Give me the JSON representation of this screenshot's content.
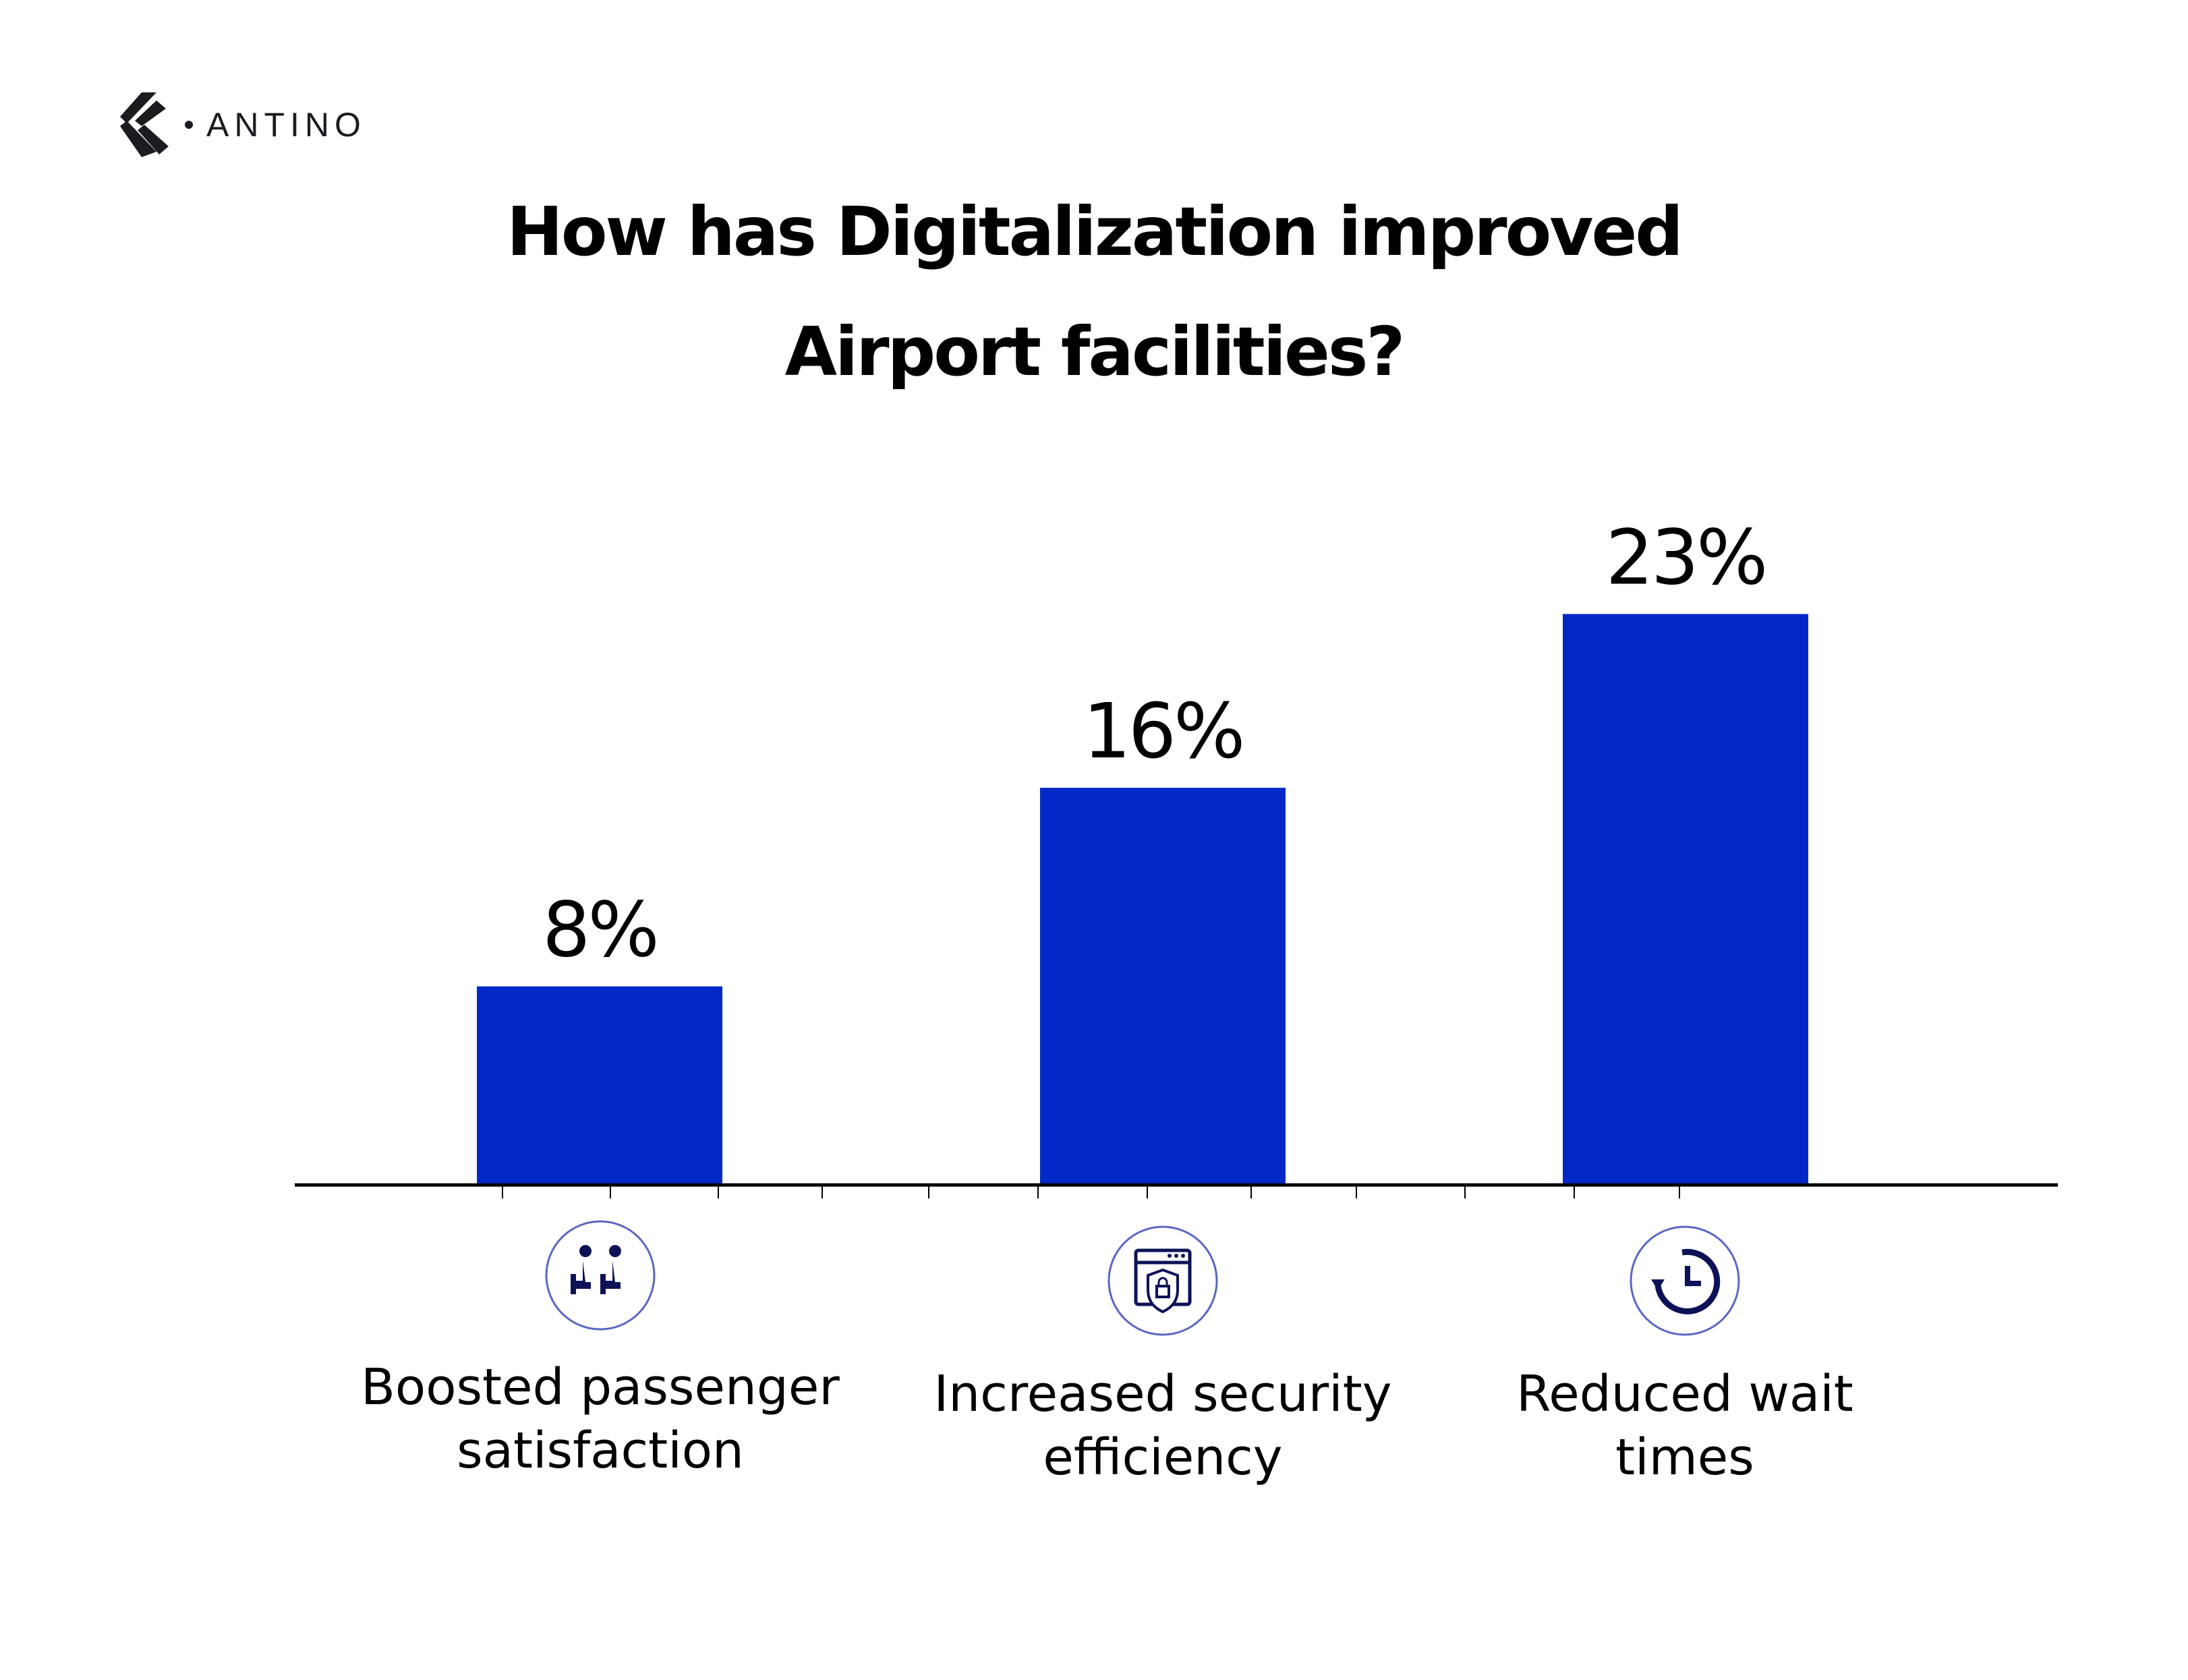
{
  "brand": {
    "name": "ANTINO"
  },
  "title_lines": [
    "How has Digitalization improved",
    "Airport facilities?"
  ],
  "chart_data": {
    "type": "bar",
    "title": "How has Digitalization improved Airport facilities?",
    "categories": [
      "Boosted passenger satisfaction",
      "Increased security efficiency",
      "Reduced wait times"
    ],
    "category_lines": [
      [
        "Boosted passenger",
        "satisfaction"
      ],
      [
        "Increased security",
        "efficiency"
      ],
      [
        "Reduced wait",
        "times"
      ]
    ],
    "category_icons": [
      "passenger-seats-icon",
      "security-shield-lock-icon",
      "clock-history-icon"
    ],
    "values": [
      8,
      16,
      23
    ],
    "data_labels": [
      "8%",
      "16%",
      "23%"
    ],
    "xlabel": "",
    "ylabel": "",
    "ylim": [
      0,
      26
    ],
    "grid": false,
    "bar_color": "#0229c8",
    "icon_color": "#0d1257",
    "icon_ring_color": "#5a67c0"
  }
}
